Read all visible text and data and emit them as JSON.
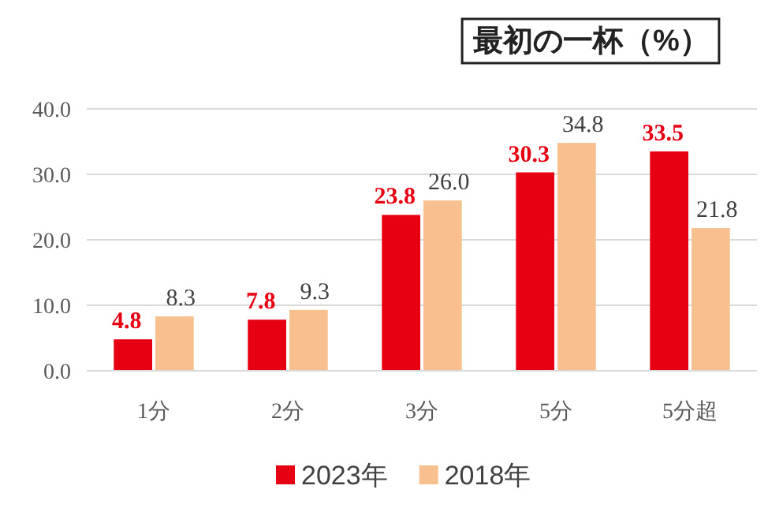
{
  "chart_data": {
    "type": "bar",
    "title": "最初の一杯（%）",
    "categories": [
      "1分",
      "2分",
      "3分",
      "5分",
      "5分超"
    ],
    "series": [
      {
        "name": "2023年",
        "color": "#e60012",
        "values": [
          4.8,
          7.8,
          23.8,
          30.3,
          33.5
        ],
        "value_labels": [
          "4.8",
          "7.8",
          "23.8",
          "30.3",
          "33.5"
        ]
      },
      {
        "name": "2018年",
        "color": "#f8c08e",
        "values": [
          8.3,
          9.3,
          26.0,
          34.8,
          21.8
        ],
        "value_labels": [
          "8.3",
          "9.3",
          "26.0",
          "34.8",
          "21.8"
        ]
      }
    ],
    "ylim": [
      0,
      40
    ],
    "yticks": [
      {
        "value": 0,
        "label": "0.0"
      },
      {
        "value": 10,
        "label": "10.0"
      },
      {
        "value": 20,
        "label": "20.0"
      },
      {
        "value": 30,
        "label": "30.0"
      },
      {
        "value": 40,
        "label": "40.0"
      }
    ],
    "grid": "y",
    "legend": "bottom"
  }
}
